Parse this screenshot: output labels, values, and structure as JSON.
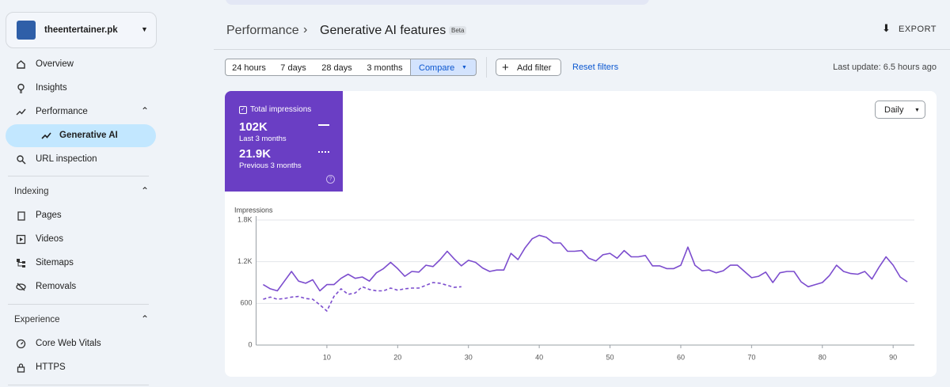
{
  "sidebar": {
    "property": "theentertainer.pk",
    "items": [
      "Overview",
      "Insights",
      "Performance",
      "Generative AI",
      "URL inspection"
    ],
    "sections": [
      {
        "title": "Indexing",
        "items": [
          "Pages",
          "Videos",
          "Sitemaps",
          "Removals"
        ]
      },
      {
        "title": "Experience",
        "items": [
          "Core Web Vitals",
          "HTTPS"
        ]
      }
    ]
  },
  "header": {
    "breadcrumb": "Performance",
    "title": "Generative AI features",
    "badge": "Beta",
    "export": "EXPORT"
  },
  "filters": {
    "ranges": [
      "24 hours",
      "7 days",
      "28 days",
      "3 months"
    ],
    "compare": "Compare",
    "add": "Add filter",
    "reset": "Reset filters",
    "last_update": "Last update: 6.5 hours ago"
  },
  "summary": {
    "label": "Total impressions",
    "current": "102K",
    "previous": "21.9K"
  },
  "granularity": "Daily",
  "chart_data": {
    "type": "line",
    "y_label": "Impressions",
    "x": [
      1,
      2,
      3,
      4,
      5,
      6,
      7,
      8,
      9,
      10,
      11,
      12,
      13,
      14,
      15,
      16,
      17,
      18,
      19,
      20,
      21,
      22,
      23,
      24,
      25,
      26,
      27,
      28,
      29,
      30,
      31,
      32,
      33,
      34,
      35,
      36,
      37,
      38,
      39,
      40,
      41,
      42,
      43,
      44,
      45,
      46,
      47,
      48,
      49,
      50,
      51,
      52,
      53,
      54,
      55,
      56,
      57,
      58,
      59,
      60,
      61,
      62,
      63,
      64,
      65,
      66,
      67,
      68,
      69,
      70,
      71,
      72,
      73,
      74,
      75,
      76,
      77,
      78,
      79,
      80,
      81,
      82,
      83,
      84,
      85,
      86,
      87,
      88,
      89,
      90,
      91,
      92
    ],
    "series": [
      {
        "name": "Last 3 months",
        "color": "#7c4dce",
        "dash": false,
        "values": [
          870,
          810,
          780,
          920,
          1060,
          920,
          890,
          940,
          780,
          870,
          870,
          960,
          1020,
          960,
          980,
          920,
          1040,
          1100,
          1190,
          1100,
          990,
          1060,
          1050,
          1150,
          1130,
          1230,
          1350,
          1240,
          1140,
          1220,
          1190,
          1110,
          1060,
          1080,
          1080,
          1320,
          1230,
          1400,
          1530,
          1580,
          1550,
          1470,
          1470,
          1350,
          1350,
          1360,
          1250,
          1210,
          1300,
          1320,
          1250,
          1360,
          1270,
          1270,
          1290,
          1140,
          1140,
          1100,
          1100,
          1150,
          1410,
          1150,
          1070,
          1080,
          1040,
          1070,
          1150,
          1150,
          1060,
          970,
          990,
          1050,
          900,
          1040,
          1060,
          1060,
          910,
          840,
          870,
          900,
          1000,
          1150,
          1060,
          1030,
          1020,
          1060,
          950,
          1120,
          1270,
          1150,
          980,
          910
        ]
      },
      {
        "name": "Previous 3 months",
        "color": "#7c4dce",
        "dash": true,
        "values": [
          660,
          690,
          660,
          670,
          690,
          700,
          670,
          660,
          580,
          490,
          700,
          810,
          730,
          750,
          840,
          800,
          780,
          780,
          820,
          790,
          810,
          820,
          820,
          860,
          900,
          890,
          860,
          830,
          840,
          null,
          null,
          null,
          null,
          null,
          null,
          null,
          null,
          null,
          null,
          null,
          null,
          null,
          null,
          null,
          null,
          null,
          null,
          null,
          null,
          null,
          null,
          null,
          null,
          null,
          null,
          null,
          null,
          null,
          null,
          null,
          null,
          null,
          null,
          null,
          null,
          null,
          null,
          null,
          null,
          null,
          null,
          null,
          null,
          null,
          null,
          null,
          null,
          null,
          null,
          null,
          null,
          null,
          null,
          null,
          null,
          null,
          null,
          null,
          null,
          null,
          null,
          null
        ]
      }
    ],
    "xlim": [
      0,
      93
    ],
    "xticks": [
      10,
      20,
      30,
      40,
      50,
      60,
      70,
      80,
      90
    ],
    "ylim": [
      0,
      1800
    ],
    "yticks": [
      0,
      600,
      {
        "value": 1200,
        "label": "1.2K"
      },
      {
        "value": 1800,
        "label": "1.8K"
      }
    ],
    "grid": true
  }
}
